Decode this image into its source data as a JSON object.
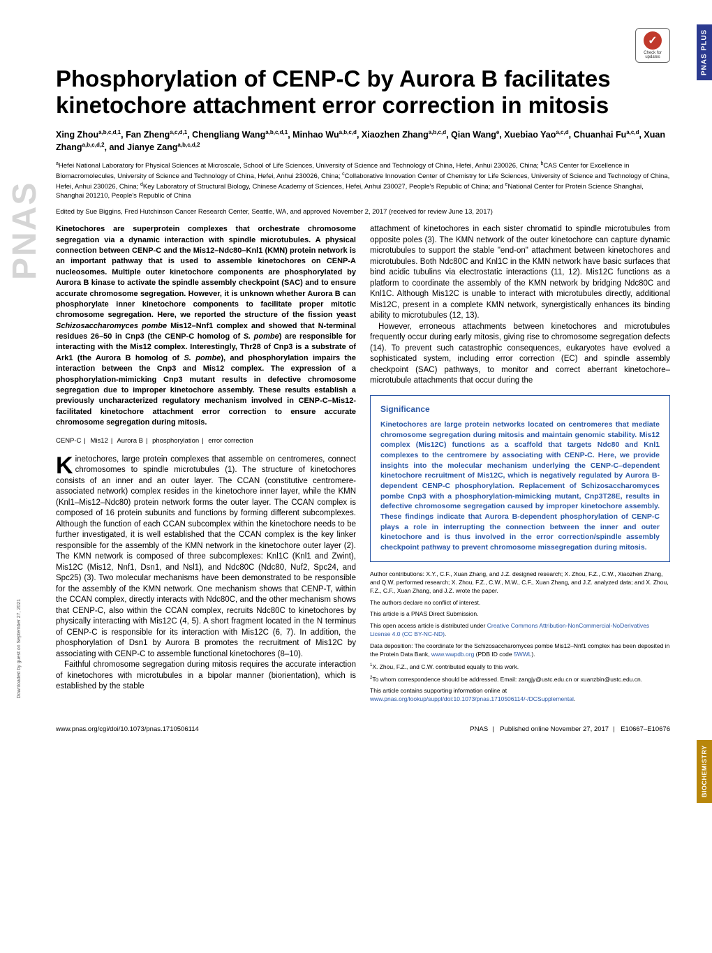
{
  "side_tabs": {
    "plus": "PNAS PLUS",
    "bio": "BIOCHEMISTRY"
  },
  "check_updates": {
    "mark": "✓",
    "line1": "Check for",
    "line2": "updates"
  },
  "logo_text": "PNAS",
  "title": "Phosphorylation of CENP-C by Aurora B facilitates kinetochore attachment error correction in mitosis",
  "authors_html": "Xing Zhou<sup>a,b,c,d,1</sup>, Fan Zheng<sup>a,c,d,1</sup>, Chengliang Wang<sup>a,b,c,d,1</sup>, Minhao Wu<sup>a,b,c,d</sup>, Xiaozhen Zhang<sup>a,b,c,d</sup>, Qian Wang<sup>e</sup>, Xuebiao Yao<sup>a,c,d</sup>, Chuanhai Fu<sup>a,c,d</sup>, Xuan Zhang<sup>a,b,c,d,2</sup>, and Jianye Zang<sup>a,b,c,d,2</sup>",
  "affiliations_html": "<sup>a</sup>Hefei National Laboratory for Physical Sciences at Microscale, School of Life Sciences, University of Science and Technology of China, Hefei, Anhui 230026, China; <sup>b</sup>CAS Center for Excellence in Biomacromolecules, University of Science and Technology of China, Hefei, Anhui 230026, China; <sup>c</sup>Collaborative Innovation Center of Chemistry for Life Sciences, University of Science and Technology of China, Hefei, Anhui 230026, China; <sup>d</sup>Key Laboratory of Structural Biology, Chinese Academy of Sciences, Hefei, Anhui 230027, People's Republic of China; and <sup>e</sup>National Center for Protein Science Shanghai, Shanghai 201210, People's Republic of China",
  "edited_by": "Edited by Sue Biggins, Fred Hutchinson Cancer Research Center, Seattle, WA, and approved November 2, 2017 (received for review June 13, 2017)",
  "abstract": "Kinetochores are superprotein complexes that orchestrate chromosome segregation via a dynamic interaction with spindle microtubules. A physical connection between CENP-C and the Mis12–Ndc80–Knl1 (KMN) protein network is an important pathway that is used to assemble kinetochores on CENP-A nucleosomes. Multiple outer kinetochore components are phosphorylated by Aurora B kinase to activate the spindle assembly checkpoint (SAC) and to ensure accurate chromosome segregation. However, it is unknown whether Aurora B can phosphorylate inner kinetochore components to facilitate proper mitotic chromosome segregation. Here, we reported the structure of the fission yeast <span class=\"italic\">Schizosaccharomyces pombe</span> Mis12–Nnf1 complex and showed that N-terminal residues 26–50 in Cnp3 (the CENP-C homolog of <span class=\"italic\">S. pombe</span>) are responsible for interacting with the Mis12 complex. Interestingly, Thr28 of Cnp3 is a substrate of Ark1 (the Aurora B homolog of <span class=\"italic\">S. pombe</span>), and phosphorylation impairs the interaction between the Cnp3 and Mis12 complex. The expression of a phosphorylation-mimicking Cnp3 mutant results in defective chromosome segregation due to improper kinetochore assembly. These results establish a previously uncharacterized regulatory mechanism involved in CENP-C–Mis12-facilitated kinetochore attachment error correction to ensure accurate chromosome segregation during mitosis.",
  "keywords": [
    "CENP-C",
    "Mis12",
    "Aurora B",
    "phosphorylation",
    "error correction"
  ],
  "body_col1_p1": "inetochores, large protein complexes that assemble on centromeres, connect chromosomes to spindle microtubules (1). The structure of kinetochores consists of an inner and an outer layer. The CCAN (constitutive centromere-associated network) complex resides in the kinetochore inner layer, while the KMN (Knl1–Mis12–Ndc80) protein network forms the outer layer. The CCAN complex is composed of 16 protein subunits and functions by forming different subcomplexes. Although the function of each CCAN subcomplex within the kinetochore needs to be further investigated, it is well established that the CCAN complex is the key linker responsible for the assembly of the KMN network in the kinetochore outer layer (2). The KMN network is composed of three subcomplexes: Knl1C (Knl1 and Zwint), Mis12C (Mis12, Nnf1, Dsn1, and Nsl1), and Ndc80C (Ndc80, Nuf2, Spc24, and Spc25) (3). Two molecular mechanisms have been demonstrated to be responsible for the assembly of the KMN network. One mechanism shows that CENP-T, within the CCAN complex, directly interacts with Ndc80C, and the other mechanism shows that CENP-C, also within the CCAN complex, recruits Ndc80C to kinetochores by physically interacting with Mis12C (4, 5). A short fragment located in the N terminus of CENP-C is responsible for its interaction with Mis12C (6, 7). In addition, the phosphorylation of Dsn1 by Aurora B promotes the recruitment of Mis12C by associating with CENP-C to assemble functional kinetochores (8–10).",
  "body_col1_p2": "Faithful chromosome segregation during mitosis requires the accurate interaction of kinetochores with microtubules in a bipolar manner (biorientation), which is established by the stable",
  "body_col2_p1": "attachment of kinetochores in each sister chromatid to spindle microtubules from opposite poles (3). The KMN network of the outer kinetochore can capture dynamic microtubules to support the stable \"end-on\" attachment between kinetochores and microtubules. Both Ndc80C and Knl1C in the KMN network have basic surfaces that bind acidic tubulins via electrostatic interactions (11, 12). Mis12C functions as a platform to coordinate the assembly of the KMN network by bridging Ndc80C and Knl1C. Although Mis12C is unable to interact with microtubules directly, additional Mis12C, present in a complete KMN network, synergistically enhances its binding ability to microtubules (12, 13).",
  "body_col2_p2": "However, erroneous attachments between kinetochores and microtubules frequently occur during early mitosis, giving rise to chromosome segregation defects (14). To prevent such catastrophic consequences, eukaryotes have evolved a sophisticated system, including error correction (EC) and spindle assembly checkpoint (SAC) pathways, to monitor and correct aberrant kinetochore–microtubule attachments that occur during the",
  "significance": {
    "heading": "Significance",
    "text": "Kinetochores are large protein networks located on centromeres that mediate chromosome segregation during mitosis and maintain genomic stability. Mis12 complex (Mis12C) functions as a scaffold that targets Ndc80 and Knl1 complexes to the centromere by associating with CENP-C. Here, we provide insights into the molecular mechanism underlying the CENP-C–dependent kinetochore recruitment of Mis12C, which is negatively regulated by Aurora B-dependent CENP-C phosphorylation. Replacement of Schizosaccharomyces pombe Cnp3 with a phosphorylation-mimicking mutant, Cnp3T28E, results in defective chromosome segregation caused by improper kinetochore assembly. These findings indicate that Aurora B-dependent phosphorylation of CENP-C plays a role in interrupting the connection between the inner and outer kinetochore and is thus involved in the error correction/spindle assembly checkpoint pathway to prevent chromosome missegregation during mitosis."
  },
  "footnotes": {
    "contributions": "Author contributions: X.Y., C.F., Xuan Zhang, and J.Z. designed research; X. Zhou, F.Z., C.W., Xiaozhen Zhang, and Q.W. performed research; X. Zhou, F.Z., C.W., M.W., C.F., Xuan Zhang, and J.Z. analyzed data; and X. Zhou, F.Z., C.F., Xuan Zhang, and J.Z. wrote the paper.",
    "conflict": "The authors declare no conflict of interest.",
    "direct": "This article is a PNAS Direct Submission.",
    "license_pre": "This open access article is distributed under ",
    "license_link": "Creative Commons Attribution-NonCommercial-NoDerivatives License 4.0 (CC BY-NC-ND)",
    "license_post": ".",
    "data_dep_pre": "Data deposition: The coordinate for the Schizosaccharomyces pombe Mis12–Nnf1 complex has been deposited in the Protein Data Bank, ",
    "data_dep_link1": "www.wwpdb.org",
    "data_dep_mid": " (PDB ID code ",
    "data_dep_link2": "5WWL",
    "data_dep_post": ").",
    "equal": "X. Zhou, F.Z., and C.W. contributed equally to this work.",
    "corr": "To whom correspondence should be addressed. Email: zangjy@ustc.edu.cn or xuanzbin@ustc.edu.cn.",
    "suppl_pre": "This article contains supporting information online at ",
    "suppl_link": "www.pnas.org/lookup/suppl/doi:10.1073/pnas.1710506114/-/DCSupplemental",
    "suppl_post": "."
  },
  "footer": {
    "doi": "www.pnas.org/cgi/doi/10.1073/pnas.1710506114",
    "pub_journal": "PNAS",
    "pub_date": "Published online November 27, 2017",
    "pages": "E10667–E10676"
  },
  "download_note": "Downloaded by guest on September 27, 2021",
  "colors": {
    "side_tab_plus_bg": "#2b3a8f",
    "side_tab_bio_bg": "#b8860b",
    "sig_border": "#2b57a5",
    "sig_text": "#2b57a5",
    "link": "#2b57a5",
    "check_circle": "#c0392b"
  }
}
